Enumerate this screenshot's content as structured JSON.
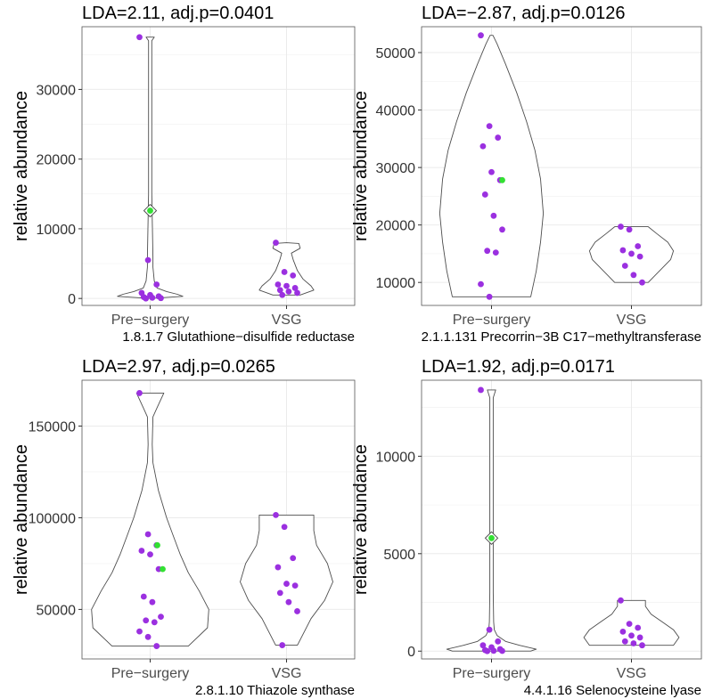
{
  "chart_data": [
    {
      "type": "violin",
      "title": "LDA=2.11, adj.p=0.0401",
      "xlabel": "1.8.1.7 Glutathione−disulfide reductase",
      "ylabel": "relative abundance",
      "categories": [
        "Pre−surgery",
        "VSG"
      ],
      "ylim": [
        -1000,
        39000
      ],
      "yticks": [
        0,
        10000,
        20000,
        30000
      ],
      "ytick_labels": [
        "0",
        "10000",
        "20000",
        "30000"
      ],
      "groups": [
        {
          "name": "Pre−surgery",
          "min": 0,
          "max": 37500,
          "points": [
            37500,
            5500,
            2000,
            800,
            500,
            300,
            200,
            100,
            50,
            0
          ],
          "mean": 12600,
          "mean_point": 12600,
          "highlight": [],
          "violin": [
            [
              0,
              0
            ],
            [
              300,
              0.24
            ],
            [
              600,
              0.2
            ],
            [
              1000,
              0.12
            ],
            [
              1500,
              0.05
            ],
            [
              2500,
              0.03
            ],
            [
              4500,
              0.02
            ],
            [
              5500,
              0.02
            ],
            [
              6000,
              0.02
            ],
            [
              15000,
              0.012
            ],
            [
              25000,
              0.012
            ],
            [
              37000,
              0.012
            ],
            [
              37500,
              0.03
            ]
          ]
        },
        {
          "name": "VSG",
          "min": 500,
          "max": 8000,
          "points": [
            8000,
            3800,
            3300,
            2000,
            1800,
            1500,
            1200,
            1000,
            800,
            500
          ],
          "mean": null,
          "mean_point": null,
          "highlight": [],
          "violin": [
            [
              500,
              0.1
            ],
            [
              1200,
              0.2
            ],
            [
              1800,
              0.18
            ],
            [
              2800,
              0.12
            ],
            [
              4000,
              0.08
            ],
            [
              5500,
              0.05
            ],
            [
              6500,
              0.035
            ],
            [
              7200,
              0.1
            ],
            [
              7900,
              0.09
            ],
            [
              8000,
              0.0
            ]
          ]
        }
      ]
    },
    {
      "type": "violin",
      "title": "LDA=−2.87, adj.p=0.0126",
      "xlabel": "2.1.1.131 Precorrin−3B C17−methyltransferase",
      "ylabel": "relative abundance",
      "categories": [
        "Pre−surgery",
        "VSG"
      ],
      "ylim": [
        6000,
        54500
      ],
      "yticks": [
        10000,
        20000,
        30000,
        40000,
        50000
      ],
      "ytick_labels": [
        "10000",
        "20000",
        "30000",
        "40000",
        "50000"
      ],
      "groups": [
        {
          "name": "Pre−surgery",
          "min": 7500,
          "max": 53000,
          "points": [
            53000,
            37200,
            35200,
            33700,
            29200,
            27800,
            25300,
            21600,
            19200,
            15500,
            15200,
            9700,
            7500
          ],
          "mean": null,
          "mean_point": 27800,
          "highlight": [],
          "violin": [
            [
              7500,
              0.28
            ],
            [
              12000,
              0.32
            ],
            [
              17000,
              0.35
            ],
            [
              22000,
              0.37
            ],
            [
              28000,
              0.35
            ],
            [
              33000,
              0.31
            ],
            [
              38000,
              0.25
            ],
            [
              43000,
              0.18
            ],
            [
              48000,
              0.1
            ],
            [
              51500,
              0.04
            ],
            [
              53000,
              0.01
            ]
          ]
        },
        {
          "name": "VSG",
          "min": 10000,
          "max": 19700,
          "points": [
            19700,
            19200,
            16300,
            15600,
            15000,
            14500,
            12900,
            11300,
            10000
          ],
          "mean": null,
          "mean_point": null,
          "highlight": [],
          "violin": [
            [
              10000,
              0.12
            ],
            [
              12000,
              0.2
            ],
            [
              14000,
              0.28
            ],
            [
              15500,
              0.3
            ],
            [
              17000,
              0.26
            ],
            [
              18500,
              0.18
            ],
            [
              19700,
              0.12
            ]
          ]
        }
      ]
    },
    {
      "type": "violin",
      "title": "LDA=2.97, adj.p=0.0265",
      "xlabel": "2.8.1.10 Thiazole synthase",
      "ylabel": "relative abundance",
      "categories": [
        "Pre−surgery",
        "VSG"
      ],
      "ylim": [
        23000,
        175000
      ],
      "yticks": [
        50000,
        100000,
        150000
      ],
      "ytick_labels": [
        "50000",
        "100000",
        "150000"
      ],
      "groups": [
        {
          "name": "Pre−surgery",
          "min": 30000,
          "max": 168000,
          "points": [
            168000,
            91000,
            85000,
            82000,
            80000,
            72000,
            57000,
            54000,
            46000,
            44000,
            43000,
            38000,
            35000,
            30000
          ],
          "mean": null,
          "mean_point": null,
          "highlight": [
            85000,
            72000
          ],
          "violin": [
            [
              30000,
              0.28
            ],
            [
              40000,
              0.42
            ],
            [
              50000,
              0.43
            ],
            [
              60000,
              0.36
            ],
            [
              70000,
              0.28
            ],
            [
              80000,
              0.22
            ],
            [
              90000,
              0.17
            ],
            [
              100000,
              0.12
            ],
            [
              115000,
              0.06
            ],
            [
              130000,
              0.02
            ],
            [
              140000,
              0.015
            ],
            [
              155000,
              0.02
            ],
            [
              160000,
              0.05
            ],
            [
              168000,
              0.1
            ]
          ]
        },
        {
          "name": "VSG",
          "min": 30500,
          "max": 101500,
          "points": [
            101500,
            95000,
            78000,
            73000,
            64000,
            63000,
            59000,
            54000,
            49000,
            30500
          ],
          "mean": null,
          "mean_point": null,
          "highlight": [],
          "violin": [
            [
              30500,
              0.08
            ],
            [
              45000,
              0.18
            ],
            [
              55000,
              0.28
            ],
            [
              65000,
              0.34
            ],
            [
              75000,
              0.3
            ],
            [
              85000,
              0.22
            ],
            [
              93000,
              0.2
            ],
            [
              100000,
              0.2
            ],
            [
              101500,
              0.2
            ]
          ]
        }
      ]
    },
    {
      "type": "violin",
      "title": "LDA=1.92, adj.p=0.0171",
      "xlabel": "4.4.1.16 Selenocysteine lyase",
      "ylabel": "relative abundance",
      "categories": [
        "Pre−surgery",
        "VSG"
      ],
      "ylim": [
        -400,
        13900
      ],
      "yticks": [
        0,
        5000,
        10000
      ],
      "ytick_labels": [
        "0",
        "5000",
        "10000"
      ],
      "groups": [
        {
          "name": "Pre−surgery",
          "min": 0,
          "max": 13400,
          "points": [
            13400,
            1100,
            500,
            300,
            200,
            100,
            50,
            20,
            10,
            0
          ],
          "mean": 5800,
          "mean_point": 5800,
          "highlight": [],
          "violin": [
            [
              0,
              0.28
            ],
            [
              100,
              0.32
            ],
            [
              300,
              0.2
            ],
            [
              500,
              0.1
            ],
            [
              800,
              0.04
            ],
            [
              1100,
              0.02
            ],
            [
              1500,
              0.015
            ],
            [
              3000,
              0.012
            ],
            [
              7000,
              0.012
            ],
            [
              11000,
              0.012
            ],
            [
              13000,
              0.012
            ],
            [
              13400,
              0.03
            ]
          ]
        },
        {
          "name": "VSG",
          "min": 300,
          "max": 2600,
          "points": [
            2600,
            1400,
            1200,
            1000,
            800,
            700,
            500,
            400,
            300
          ],
          "mean": null,
          "mean_point": null,
          "highlight": [],
          "violin": [
            [
              300,
              0.3
            ],
            [
              700,
              0.34
            ],
            [
              1100,
              0.3
            ],
            [
              1500,
              0.22
            ],
            [
              1900,
              0.14
            ],
            [
              2300,
              0.1
            ],
            [
              2600,
              0.1
            ]
          ]
        }
      ]
    }
  ]
}
